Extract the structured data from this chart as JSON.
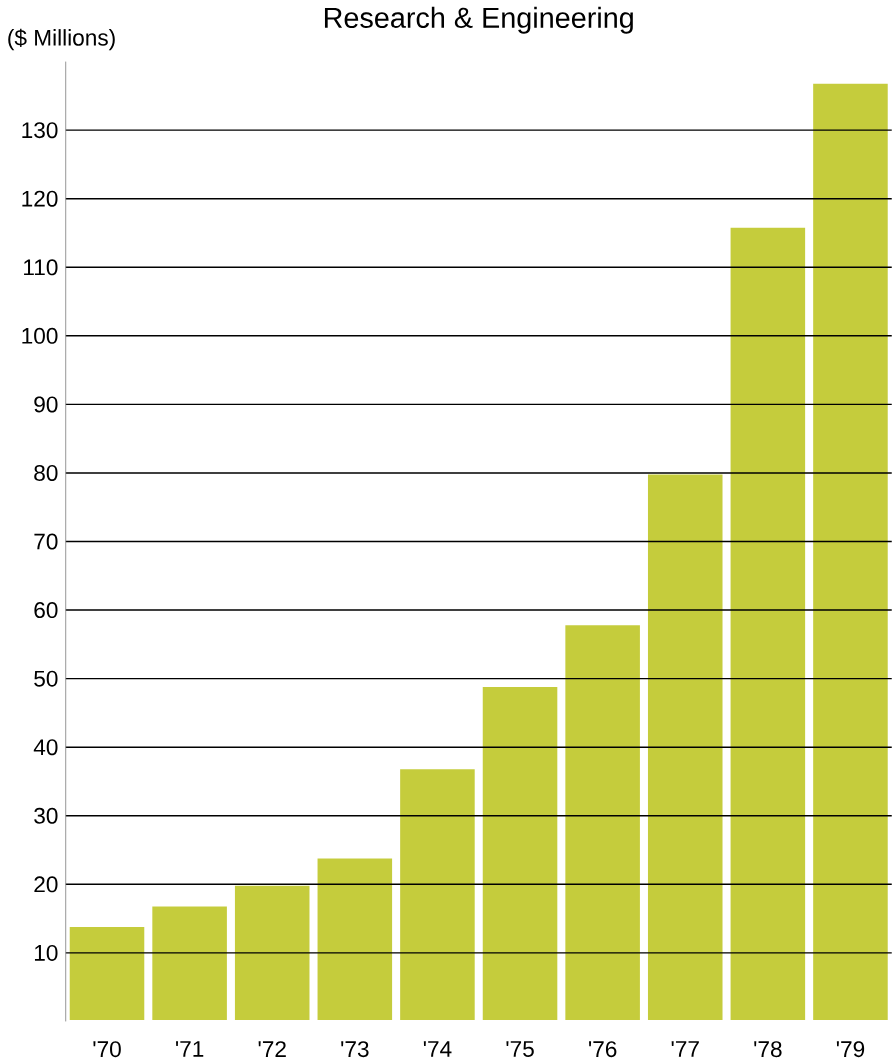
{
  "chart_data": {
    "type": "bar",
    "title": "Research & Engineering",
    "ylabel": "($ Millions)",
    "categories": [
      "'70",
      "'71",
      "'72",
      "'73",
      "'74",
      "'75",
      "'76",
      "'77",
      "'78",
      "'79"
    ],
    "values": [
      14,
      17,
      20,
      24,
      37,
      49,
      58,
      80,
      116,
      137
    ],
    "color": "#c5cc3c",
    "ylim": [
      0,
      140
    ],
    "yticks": [
      10,
      20,
      30,
      40,
      50,
      60,
      70,
      80,
      90,
      100,
      110,
      120,
      130
    ],
    "grid": "y"
  }
}
